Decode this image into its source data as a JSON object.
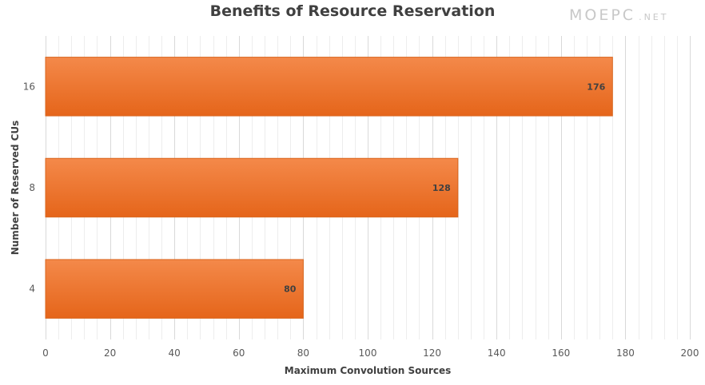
{
  "watermark": {
    "main": "MOEPC",
    "suffix": ".NET"
  },
  "chart_data": {
    "type": "bar",
    "orientation": "horizontal",
    "title": "Benefits of Resource Reservation",
    "xlabel": "Maximum Convolution Sources",
    "ylabel": "Number of Reserved CUs",
    "categories": [
      "4",
      "8",
      "16"
    ],
    "values": [
      80,
      128,
      176
    ],
    "data_labels": [
      "80",
      "128",
      "176"
    ],
    "xlim": [
      0,
      200
    ],
    "x_ticks": [
      0,
      20,
      40,
      60,
      80,
      100,
      120,
      140,
      160,
      180,
      200
    ],
    "grid": true,
    "legend": "none",
    "colors": {
      "bar_top": "#f4894a",
      "bar_bottom": "#e5651a",
      "bar_edge": "#d9661e",
      "grid_major": "#d9d9d9",
      "grid_minor": "#ededed"
    }
  }
}
